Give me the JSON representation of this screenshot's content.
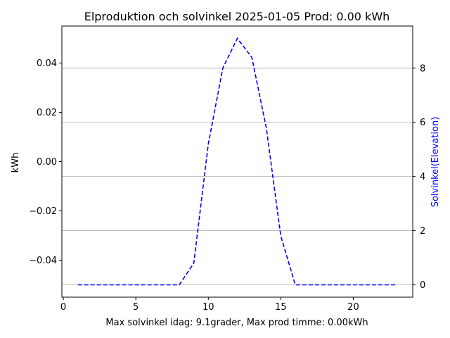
{
  "chart_data": {
    "type": "line",
    "title": "Elproduktion och solvinkel 2025-01-05 Prod: 0.00 kWh",
    "xlabel": "Max solvinkel idag: 9.1grader, Max prod timme: 0.00kWh",
    "ylabel_left": "kWh",
    "ylabel_right": "Solvinkel(Elevation)",
    "xlim": [
      -0.1,
      24.1
    ],
    "ylim_left": [
      -0.055,
      0.055
    ],
    "ylim_right": [
      -0.455,
      9.555
    ],
    "x_ticks": [
      0,
      5,
      10,
      15,
      20
    ],
    "y_left_ticks": [
      -0.04,
      -0.02,
      0.0,
      0.02,
      0.04
    ],
    "y_left_tick_labels": [
      "−0.04",
      "−0.02",
      "0.00",
      "0.02",
      "0.04"
    ],
    "y_right_ticks": [
      0,
      2,
      4,
      6,
      8
    ],
    "grid": "horizontal, right axis",
    "series": [
      {
        "axis": "right",
        "color": "#0000ff",
        "style": "dashed",
        "x": [
          1,
          2,
          3,
          4,
          5,
          6,
          7,
          8,
          9,
          10,
          11,
          12,
          13,
          14,
          15,
          16,
          17,
          18,
          19,
          20,
          21,
          22,
          23
        ],
        "values": [
          0,
          0,
          0,
          0,
          0,
          0,
          0,
          0,
          0.8,
          5.2,
          8.0,
          9.1,
          8.4,
          5.8,
          1.8,
          0,
          0,
          0,
          0,
          0,
          0,
          0,
          0
        ]
      }
    ]
  }
}
